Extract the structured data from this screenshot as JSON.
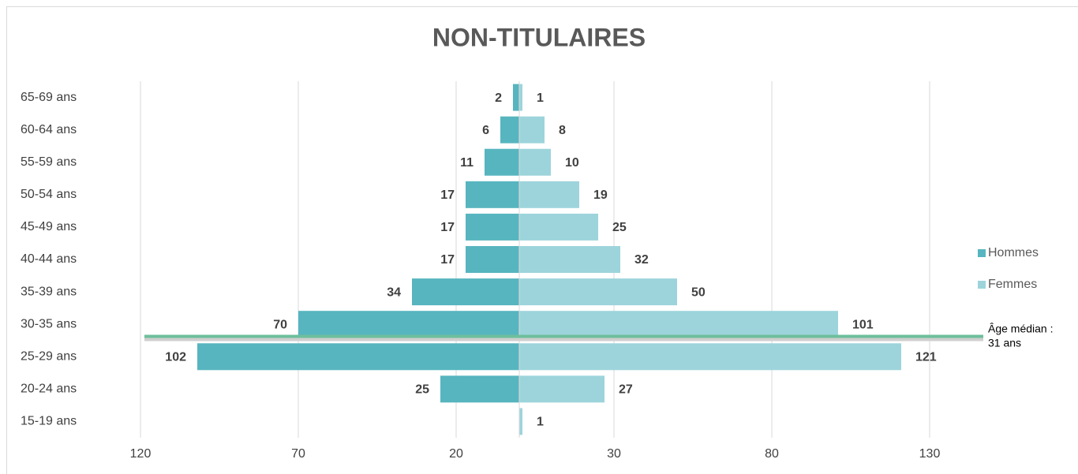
{
  "chart_data": {
    "type": "pyramid",
    "title": "NON-TITULAIRES",
    "categories": [
      "65-69 ans",
      "60-64 ans",
      "55-59 ans",
      "50-54 ans",
      "45-49 ans",
      "40-44 ans",
      "35-39 ans",
      "30-35 ans",
      "25-29 ans",
      "20-24 ans",
      "15-19 ans"
    ],
    "series": [
      {
        "name": "Hommes",
        "color": "#57b5bf",
        "values": [
          -2,
          -6,
          -11,
          -17,
          -17,
          -17,
          -34,
          -70,
          -102,
          -25,
          null
        ],
        "value_labels": [
          "2",
          "6",
          "11",
          "17",
          "17",
          "17",
          "34",
          "70",
          "102",
          "25",
          null
        ]
      },
      {
        "name": "Femmes",
        "color": "#9dd4db",
        "values": [
          1,
          8,
          10,
          19,
          25,
          32,
          50,
          101,
          121,
          27,
          1
        ]
      }
    ],
    "xlim": [
      -130,
      140
    ],
    "xticks": [
      {
        "value": -120,
        "label": "120"
      },
      {
        "value": -70,
        "label": "70"
      },
      {
        "value": -20,
        "label": "20"
      },
      30,
      80,
      130
    ],
    "grid": true,
    "legend": "right",
    "annotation": [
      "Âge médian :",
      "31 ans"
    ]
  }
}
